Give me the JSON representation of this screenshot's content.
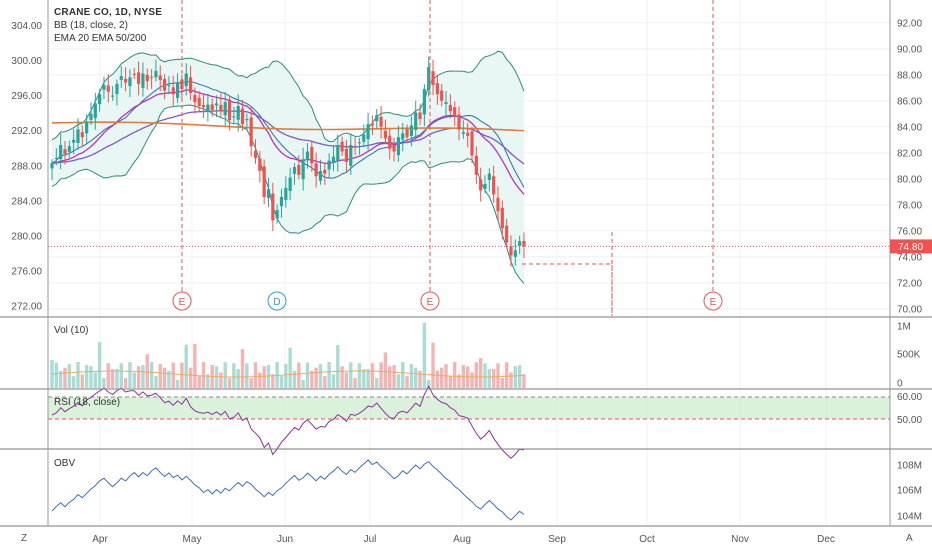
{
  "header": {
    "title": "CRANE CO, 1D, NYSE",
    "indicators": [
      "BB (18, close, 2)",
      "EMA 20 EMA 50/200"
    ]
  },
  "panes": {
    "volume_label": "Vol (10)",
    "rsi_label": "RSI (18, close)",
    "obv_label": "OBV"
  },
  "price_badge": "74.80",
  "corner": {
    "left": "Z",
    "right": "A"
  },
  "colors": {
    "up": "#26a69a",
    "down": "#ef5350",
    "bb": "#2e8b7e",
    "bb_fill": "#e6f5f3",
    "ema20": "#c02fbf",
    "ema50": "#7b5cc4",
    "ema200": "#e07b39",
    "rsi": "#8e2fa0",
    "obv": "#3f6fb5",
    "grid": "#eef0f3",
    "axis": "#555555",
    "marker_red": "#e05555",
    "marker_blue": "#2e9bd6",
    "rsi_band": "#c9ecc9"
  },
  "chart_data": [
    {
      "type": "candlestick",
      "title": "CRANE CO, 1D, NYSE",
      "left_axis": {
        "ticks": [
          "272.00",
          "276.00",
          "280.00",
          "284.00",
          "288.00",
          "292.00",
          "296.00",
          "300.00",
          "304.00"
        ]
      },
      "right_axis": {
        "ticks": [
          "70.00",
          "72.00",
          "74.00",
          "76.00",
          "78.00",
          "80.00",
          "82.00",
          "84.00",
          "86.00",
          "88.00",
          "90.00",
          "92.00"
        ]
      },
      "ylim": [
        69.6,
        93.6
      ],
      "x_labels": [
        "Apr",
        "May",
        "Jun",
        "Jul",
        "Aug",
        "Sep",
        "Oct",
        "Nov",
        "Dec"
      ],
      "last_price": 74.8,
      "close": [
        81.2,
        81.6,
        82.6,
        81.9,
        82.5,
        83.0,
        83.8,
        83.2,
        84.4,
        85.0,
        85.8,
        86.5,
        87.2,
        86.7,
        86.4,
        87.3,
        87.9,
        87.4,
        87.8,
        88.0,
        87.3,
        88.1,
        87.5,
        87.8,
        88.3,
        87.6,
        86.8,
        87.2,
        86.5,
        87.4,
        86.9,
        88.1,
        86.6,
        85.9,
        85.6,
        85.5,
        85.7,
        85.3,
        85.8,
        85.2,
        85.9,
        84.5,
        84.8,
        85.6,
        84.2,
        84.6,
        82.5,
        81.6,
        80.6,
        78.6,
        79.2,
        76.8,
        77.6,
        78.6,
        79.3,
        80.1,
        80.9,
        80.3,
        81.5,
        82.1,
        81.2,
        80.2,
        80.6,
        80.4,
        81.4,
        81.7,
        82.6,
        82.1,
        81.3,
        82.6,
        82.4,
        82.8,
        83.4,
        84.2,
        84.1,
        84.9,
        84.0,
        83.1,
        82.3,
        82.1,
        83.2,
        83.5,
        83.2,
        84.1,
        85.1,
        84.6,
        86.9,
        88.6,
        87.2,
        86.5,
        86.0,
        85.9,
        85.2,
        84.8,
        83.8,
        83.6,
        83.3,
        81.8,
        80.3,
        79.1,
        79.6,
        80.4,
        78.8,
        77.5,
        76.2,
        75.1,
        74.1,
        74.5,
        75.2,
        74.8
      ],
      "volume_ma": {
        "label": "Vol (10)"
      },
      "volume_axis_ticks": [
        "0",
        "500K",
        "1M"
      ],
      "rsi_axis_ticks": [
        "50.00",
        "60.00"
      ],
      "obv_axis_ticks": [
        "104M",
        "106M",
        "108M"
      ],
      "earnings_markers": [
        "E",
        "D",
        "E",
        "E"
      ]
    }
  ]
}
